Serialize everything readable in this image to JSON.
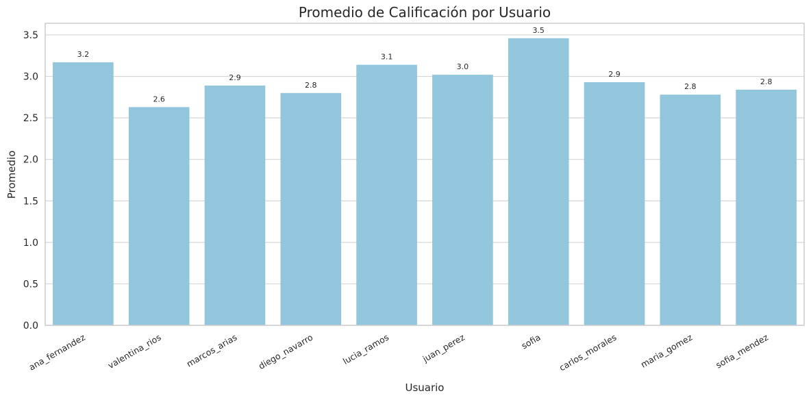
{
  "chart_data": {
    "type": "bar",
    "title": "Promedio de Calificación por Usuario",
    "xlabel": "Usuario",
    "ylabel": "Promedio",
    "categories": [
      "ana_fernandez",
      "valentina_rios",
      "marcos_arias",
      "diego_navarro",
      "lucia_ramos",
      "juan_perez",
      "sofia",
      "carlos_morales",
      "maria_gomez",
      "sofia_mendez"
    ],
    "values": [
      3.17,
      2.63,
      2.89,
      2.8,
      3.14,
      3.02,
      3.46,
      2.93,
      2.78,
      2.84
    ],
    "data_labels": [
      "3.2",
      "2.6",
      "2.9",
      "2.8",
      "3.1",
      "3.0",
      "3.5",
      "2.9",
      "2.8",
      "2.8"
    ],
    "ylim": [
      0,
      3.64
    ],
    "yticks": [
      0.0,
      0.5,
      1.0,
      1.5,
      2.0,
      2.5,
      3.0,
      3.5
    ],
    "ytick_labels": [
      "0.0",
      "0.5",
      "1.0",
      "1.5",
      "2.0",
      "2.5",
      "3.0",
      "3.5"
    ],
    "grid": "horizontal",
    "bar_color": "#92c6dd",
    "grid_color": "#d5d5d5",
    "axis_color": "#cccccc"
  }
}
